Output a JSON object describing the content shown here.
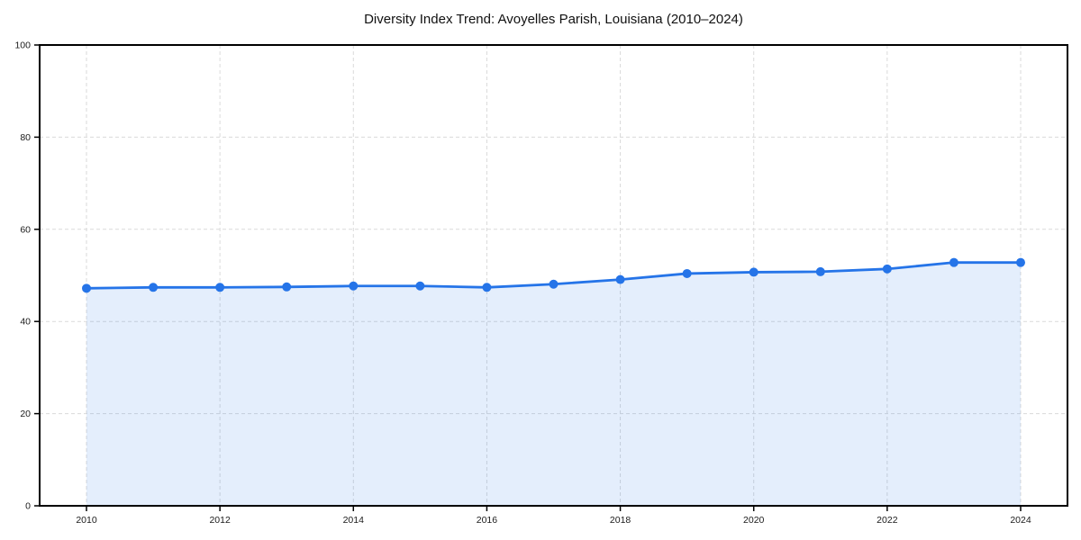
{
  "chart_data": {
    "type": "area",
    "title": "Diversity Index Trend: Avoyelles Parish, Louisiana (2010–2024)",
    "xlabel": "",
    "ylabel": "",
    "x": [
      2010,
      2011,
      2012,
      2013,
      2014,
      2015,
      2016,
      2017,
      2018,
      2019,
      2020,
      2021,
      2022,
      2023,
      2024
    ],
    "values": [
      47.2,
      47.4,
      47.4,
      47.5,
      47.7,
      47.7,
      47.4,
      48.1,
      49.1,
      50.4,
      50.7,
      50.8,
      51.4,
      52.8,
      52.8
    ],
    "series_name": "Diversity Index",
    "xticks": [
      2010,
      2012,
      2014,
      2016,
      2018,
      2020,
      2022,
      2024
    ],
    "yticks": [
      0,
      20,
      40,
      60,
      80,
      100
    ],
    "ylim": [
      0,
      100
    ],
    "grid": "dashed",
    "legend": "none",
    "colors": {
      "line": "#2574e8",
      "marker": "#2574e8",
      "fill": "#2574e8",
      "grid": "#dadada",
      "spine": "#000000",
      "tick_label": "#1a1a1a",
      "background": "#ffffff"
    },
    "fill_opacity": 0.12,
    "marker": "circle"
  }
}
